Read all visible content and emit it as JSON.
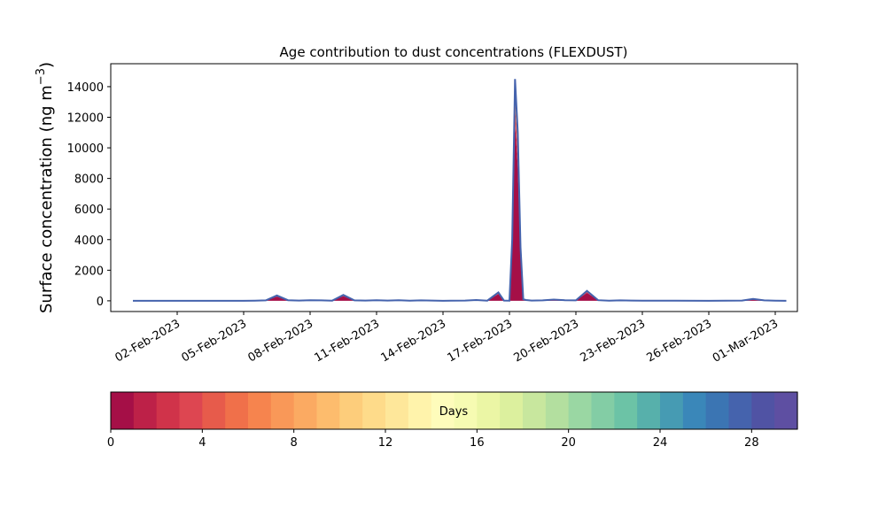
{
  "chart_data": {
    "type": "area",
    "title": "Age contribution to dust concentrations (FLEXDUST)",
    "ylabel_main": "Surface concentration (ng m",
    "ylabel_sup": "−3",
    "ylabel_close": ")",
    "xlabel": "",
    "ylim": [
      -700,
      15500
    ],
    "xlim": [
      "2023-01-30",
      "2023-03-02"
    ],
    "yticks": [
      0,
      2000,
      4000,
      6000,
      8000,
      10000,
      12000,
      14000
    ],
    "xticks": [
      "2023-02-02",
      "2023-02-05",
      "2023-02-08",
      "2023-02-11",
      "2023-02-14",
      "2023-02-17",
      "2023-02-20",
      "2023-02-23",
      "2023-02-26",
      "2023-03-01"
    ],
    "xtick_labels": [
      "02-Feb-2023",
      "05-Feb-2023",
      "08-Feb-2023",
      "11-Feb-2023",
      "14-Feb-2023",
      "17-Feb-2023",
      "20-Feb-2023",
      "23-Feb-2023",
      "26-Feb-2023",
      "01-Mar-2023"
    ],
    "total_series": {
      "name": "",
      "x": [
        "2023-01-31",
        "2023-02-05",
        "2023-02-05 12:00",
        "2023-02-06",
        "2023-02-06 12:00",
        "2023-02-07",
        "2023-02-07 12:00",
        "2023-02-08",
        "2023-02-08 12:00",
        "2023-02-09",
        "2023-02-09 12:00",
        "2023-02-10",
        "2023-02-10 12:00",
        "2023-02-11",
        "2023-02-11 12:00",
        "2023-02-12",
        "2023-02-12 12:00",
        "2023-02-13",
        "2023-02-14",
        "2023-02-15",
        "2023-02-15 12:00",
        "2023-02-16",
        "2023-02-16 12:00",
        "2023-02-16 18:00",
        "2023-02-17",
        "2023-02-17 03:00",
        "2023-02-17 06:00",
        "2023-02-17 09:00",
        "2023-02-17 12:00",
        "2023-02-17 15:00",
        "2023-02-17 18:00",
        "2023-02-18",
        "2023-02-18 12:00",
        "2023-02-19",
        "2023-02-19 12:00",
        "2023-02-20",
        "2023-02-20 12:00",
        "2023-02-21",
        "2023-02-21 12:00",
        "2023-02-22",
        "2023-02-22 12:00",
        "2023-02-23",
        "2023-02-26",
        "2023-02-27 12:00",
        "2023-02-28",
        "2023-02-28 12:00",
        "2023-03-01",
        "2023-03-01 12:00"
      ],
      "y": [
        0,
        0,
        10,
        30,
        350,
        40,
        20,
        40,
        30,
        10,
        380,
        30,
        20,
        40,
        20,
        40,
        10,
        30,
        0,
        20,
        50,
        10,
        550,
        20,
        10,
        4000,
        14500,
        11000,
        3500,
        100,
        50,
        20,
        30,
        80,
        40,
        30,
        650,
        40,
        10,
        30,
        20,
        10,
        0,
        20,
        130,
        30,
        10,
        0
      ]
    },
    "colorbar": {
      "label": "Days",
      "min": 0,
      "max": 30,
      "ticks": [
        0,
        4,
        8,
        12,
        16,
        20,
        24,
        28
      ],
      "colors": [
        "#a50f47",
        "#bd2148",
        "#d0334a",
        "#dd4651",
        "#e75b4b",
        "#f0704a",
        "#f6844e",
        "#f99858",
        "#fbaa62",
        "#fdbc6d",
        "#fdcd7b",
        "#fedb8a",
        "#fee79a",
        "#fff3ab",
        "#fefcbb",
        "#f6fbb2",
        "#ebf6a5",
        "#dcf09e",
        "#c8e79e",
        "#b3df9f",
        "#9ad7a3",
        "#83cda5",
        "#6cc3a6",
        "#57b0ab",
        "#469bb3",
        "#3a87b9",
        "#3b75b3",
        "#4563ad",
        "#5053a4",
        "#5e4fa2"
      ]
    }
  }
}
